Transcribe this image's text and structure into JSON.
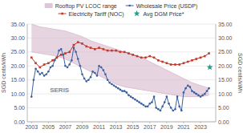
{
  "chart_data": {
    "type": "line",
    "y_label": "SGD cents/kWh",
    "y2_label": "SGD cents/kWh",
    "annotations": [
      "SERIS"
    ],
    "legend": "top",
    "grid": true,
    "xlim": [
      2002.5,
      2024.8
    ],
    "xticks": [
      2003,
      2005,
      2007,
      2009,
      2011,
      2013,
      2015,
      2017,
      2019,
      2021,
      2023
    ],
    "ylim": [
      0,
      35
    ],
    "yticks": [
      {
        "value": 0,
        "label": "0.00"
      },
      {
        "value": 5,
        "label": "5.00"
      },
      {
        "value": 10,
        "label": "10.00"
      },
      {
        "value": 15,
        "label": "15.00"
      },
      {
        "value": 20,
        "label": "20.00"
      },
      {
        "value": 25,
        "label": "25.00"
      },
      {
        "value": 30,
        "label": "30.00"
      },
      {
        "value": 35,
        "label": "35.00"
      }
    ],
    "y2lim": [
      0,
      35
    ],
    "y2ticks": [
      {
        "value": 0,
        "label": "0.00"
      },
      {
        "value": 5,
        "label": "5.00"
      },
      {
        "value": 10,
        "label": "10.00"
      },
      {
        "value": 15,
        "label": "15.00"
      },
      {
        "value": 20,
        "label": "20.00"
      },
      {
        "value": 25,
        "label": "25.00"
      },
      {
        "value": 30,
        "label": "30.00"
      },
      {
        "value": 35,
        "label": "35.00"
      }
    ],
    "series": [
      {
        "name": "Rooftop PV LCOC range",
        "type": "area",
        "color": "#d6b8cc",
        "x": [
          2003,
          2004,
          2005,
          2006,
          2007,
          2008,
          2009,
          2010,
          2011,
          2012,
          2013,
          2014,
          2015,
          2016,
          2017,
          2018,
          2019,
          2020,
          2021,
          2022,
          2023,
          2024
        ],
        "values": [
          35.0,
          34.0,
          33.5,
          33.0,
          32.5,
          31.5,
          30.5,
          29.0,
          28.0,
          27.0,
          26.0,
          25.0,
          24.0,
          23.0,
          21.5,
          20.0,
          18.5,
          17.0,
          15.5,
          14.0,
          13.0,
          12.0
        ],
        "lower": [
          25.0,
          24.5,
          24.0,
          23.5,
          22.5,
          21.0,
          19.5,
          18.0,
          16.5,
          15.0,
          13.5,
          12.5,
          12.0,
          11.5,
          11.0,
          10.5,
          10.0,
          9.5,
          9.0,
          9.0,
          9.0,
          9.5
        ]
      },
      {
        "name": "Wholesale Price (USDP)",
        "type": "line",
        "color": "#3a5fa0",
        "marker": "circle",
        "x": [
          2003.0,
          2003.25,
          2003.5,
          2003.75,
          2004.0,
          2004.25,
          2004.5,
          2004.75,
          2005.0,
          2005.25,
          2005.5,
          2005.75,
          2006.0,
          2006.25,
          2006.5,
          2006.75,
          2007.0,
          2007.25,
          2007.5,
          2007.75,
          2008.0,
          2008.25,
          2008.5,
          2008.75,
          2009.0,
          2009.25,
          2009.5,
          2009.75,
          2010.0,
          2010.25,
          2010.5,
          2010.75,
          2011.0,
          2011.25,
          2011.5,
          2011.75,
          2012.0,
          2012.25,
          2012.5,
          2012.75,
          2013.0,
          2013.25,
          2013.5,
          2013.75,
          2014.0,
          2014.25,
          2014.5,
          2014.75,
          2015.0,
          2015.25,
          2015.5,
          2015.75,
          2016.0,
          2016.25,
          2016.5,
          2016.75,
          2017.0,
          2017.25,
          2017.5,
          2017.75,
          2018.0,
          2018.25,
          2018.5,
          2018.75,
          2019.0,
          2019.25,
          2019.5,
          2019.75,
          2020.0,
          2020.25,
          2020.5,
          2020.75,
          2021.0,
          2021.25,
          2021.5,
          2021.75,
          2022.0,
          2022.25,
          2022.5,
          2022.75,
          2023.0,
          2023.25,
          2023.5,
          2023.75,
          2024.0
        ],
        "values": [
          9.0,
          15.0,
          19.0,
          18.0,
          17.0,
          17.5,
          16.5,
          17.0,
          18.0,
          19.5,
          20.0,
          22.0,
          23.0,
          25.5,
          26.0,
          24.0,
          20.0,
          19.5,
          20.5,
          22.0,
          26.5,
          25.0,
          22.5,
          20.0,
          17.0,
          15.5,
          14.5,
          15.0,
          16.0,
          18.0,
          17.5,
          16.5,
          20.0,
          19.5,
          18.5,
          17.0,
          15.0,
          14.0,
          13.5,
          13.0,
          12.5,
          12.0,
          11.5,
          11.0,
          11.0,
          10.5,
          9.5,
          9.0,
          8.5,
          8.0,
          7.5,
          7.0,
          6.5,
          6.0,
          5.5,
          5.5,
          6.5,
          7.0,
          9.0,
          5.0,
          4.5,
          4.0,
          5.5,
          7.0,
          9.0,
          6.5,
          5.0,
          4.0,
          4.5,
          9.0,
          5.5,
          4.0,
          10.5,
          12.0,
          13.0,
          12.5,
          11.0,
          10.5,
          10.0,
          9.5,
          9.0,
          9.5,
          10.0,
          11.0,
          12.0
        ]
      },
      {
        "name": "Electricity Tariff (NOC)",
        "type": "line",
        "color": "#c0392b",
        "marker": "square",
        "x": [
          2003.0,
          2003.5,
          2004.0,
          2004.5,
          2005.0,
          2005.5,
          2006.0,
          2006.5,
          2007.0,
          2007.5,
          2008.0,
          2008.5,
          2009.0,
          2009.5,
          2010.0,
          2010.5,
          2011.0,
          2011.5,
          2012.0,
          2012.5,
          2013.0,
          2013.5,
          2014.0,
          2014.5,
          2015.0,
          2015.5,
          2016.0,
          2016.5,
          2017.0,
          2017.5,
          2018.0,
          2018.5,
          2019.0,
          2019.5,
          2020.0,
          2020.5,
          2021.0,
          2021.5,
          2022.0,
          2022.5,
          2023.0,
          2023.5,
          2024.0
        ],
        "values": [
          23.0,
          21.0,
          19.5,
          20.5,
          21.0,
          22.0,
          23.0,
          24.0,
          24.5,
          25.0,
          27.5,
          28.5,
          28.0,
          27.0,
          26.5,
          26.0,
          26.5,
          26.0,
          25.5,
          25.5,
          25.5,
          25.0,
          25.0,
          24.5,
          24.0,
          23.5,
          23.0,
          23.0,
          23.5,
          23.0,
          22.0,
          21.5,
          21.0,
          20.5,
          20.5,
          20.5,
          21.0,
          21.5,
          22.0,
          22.5,
          23.0,
          23.5,
          24.5
        ]
      },
      {
        "name": "Avg DGM Price*",
        "type": "scatter",
        "color": "#2a9d8f",
        "marker": "star",
        "x": [
          2024.1
        ],
        "values": [
          19.5
        ]
      }
    ]
  }
}
